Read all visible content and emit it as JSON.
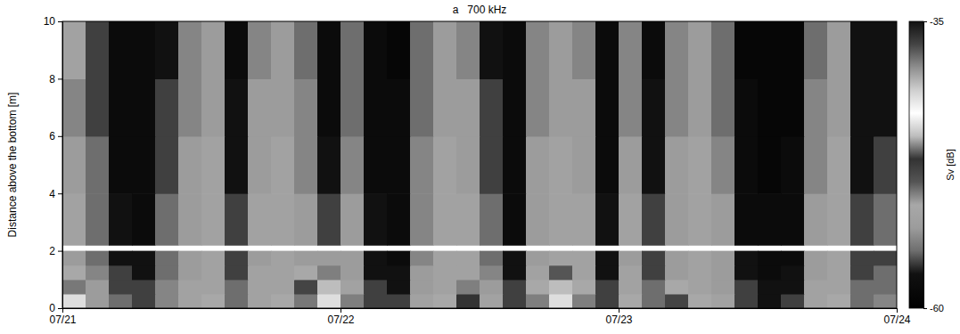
{
  "chart_data": {
    "type": "heatmap",
    "title": "a   700 kHz",
    "y_label": "Distance above the bottom [m]",
    "x_edges": [
      0,
      2,
      4,
      6,
      8,
      10,
      12,
      14,
      16,
      18,
      20,
      22,
      24,
      26,
      28,
      30,
      32,
      34,
      36,
      38,
      40,
      42,
      44,
      46,
      48,
      50,
      52,
      54,
      56,
      58,
      60,
      62,
      64,
      66,
      68,
      70,
      72
    ],
    "y_edges": [
      0,
      0.5,
      1,
      1.5,
      2,
      2.2,
      4,
      6,
      8,
      10
    ],
    "values": [
      [
        -44,
        -53,
        -55,
        -56,
        -54,
        -52,
        -51,
        -55,
        -52,
        -51,
        -46,
        -44,
        -50,
        -56,
        -56,
        -52,
        -51,
        -47,
        -52,
        -56,
        -50,
        -44,
        -50,
        -56,
        -51,
        -55,
        -48,
        -51,
        -52,
        -56,
        -57,
        -56,
        -52,
        -51,
        -55,
        -54
      ],
      [
        -46,
        -53,
        -56,
        -56,
        -54,
        -52,
        -52,
        -55,
        -52,
        -52,
        -48,
        -45,
        -52,
        -56,
        -57,
        -53,
        -52,
        -50,
        -53,
        -56,
        -51,
        -45,
        -51,
        -56,
        -52,
        -55,
        -51,
        -52,
        -53,
        -56,
        -57,
        -57,
        -52,
        -52,
        -55,
        -55
      ],
      [
        -51,
        -54,
        -56,
        -57,
        -55,
        -53,
        -52,
        -56,
        -52,
        -52,
        -51,
        -50,
        -53,
        -57,
        -57,
        -53,
        -52,
        -52,
        -54,
        -57,
        -52,
        -49,
        -52,
        -57,
        -52,
        -56,
        -53,
        -52,
        -53,
        -57,
        -58,
        -57,
        -53,
        -52,
        -56,
        -55
      ],
      [
        -53,
        -55,
        -57,
        -57,
        -55,
        -53,
        -52,
        -56,
        -53,
        -52,
        -53,
        -53,
        -53,
        -57,
        -58,
        -54,
        -52,
        -52,
        -55,
        -57,
        -53,
        -52,
        -52,
        -57,
        -53,
        -56,
        -53,
        -52,
        -53,
        -57,
        -58,
        -58,
        -53,
        -52,
        -56,
        -56
      ],
      [
        null,
        null,
        null,
        null,
        null,
        null,
        null,
        null,
        null,
        null,
        null,
        null,
        null,
        null,
        null,
        null,
        null,
        null,
        null,
        null,
        null,
        null,
        null,
        null,
        null,
        null,
        null,
        null,
        null,
        null,
        null,
        null,
        null,
        null,
        null,
        null
      ],
      [
        -52,
        -55,
        -57,
        -58,
        -55,
        -53,
        -52,
        -56,
        -52,
        -52,
        -53,
        -56,
        -53,
        -57,
        -58,
        -54,
        -52,
        -52,
        -55,
        -58,
        -53,
        -52,
        -52,
        -57,
        -52,
        -56,
        -53,
        -52,
        -53,
        -58,
        -58,
        -58,
        -53,
        -52,
        -56,
        -55
      ],
      [
        -53,
        -55,
        -58,
        -58,
        -56,
        -53,
        -52,
        -57,
        -53,
        -52,
        -54,
        -57,
        -54,
        -58,
        -58,
        -54,
        -52,
        -53,
        -56,
        -58,
        -53,
        -52,
        -53,
        -58,
        -53,
        -57,
        -53,
        -52,
        -54,
        -58,
        -59,
        -58,
        -54,
        -52,
        -57,
        -56
      ],
      [
        -54,
        -56,
        -58,
        -58,
        -56,
        -54,
        -53,
        -57,
        -53,
        -53,
        -54,
        -58,
        -55,
        -58,
        -58,
        -55,
        -53,
        -53,
        -56,
        -58,
        -54,
        -53,
        -53,
        -58,
        -54,
        -57,
        -54,
        -53,
        -55,
        -58,
        -59,
        -59,
        -54,
        -53,
        -57,
        -57
      ],
      [
        -52,
        -56,
        -58,
        -58,
        -57,
        -54,
        -53,
        -58,
        -54,
        -53,
        -55,
        -58,
        -55,
        -58,
        -59,
        -55,
        -53,
        -54,
        -57,
        -58,
        -54,
        -53,
        -54,
        -58,
        -54,
        -58,
        -54,
        -53,
        -55,
        -59,
        -59,
        -59,
        -55,
        -53,
        -57,
        -57
      ]
    ],
    "xlim": [
      0,
      72
    ],
    "xticks": [
      {
        "value": 0,
        "label": "07/21"
      },
      {
        "value": 24,
        "label": "07/22"
      },
      {
        "value": 48,
        "label": "07/23"
      },
      {
        "value": 72,
        "label": "07/24"
      }
    ],
    "ylim": [
      0,
      10
    ],
    "yticks": [
      0,
      2,
      4,
      6,
      8,
      10
    ],
    "colorbar": {
      "lim": [
        -60,
        -35
      ],
      "ticks": [
        -60,
        -35
      ],
      "title": "Sv [dB]"
    }
  }
}
